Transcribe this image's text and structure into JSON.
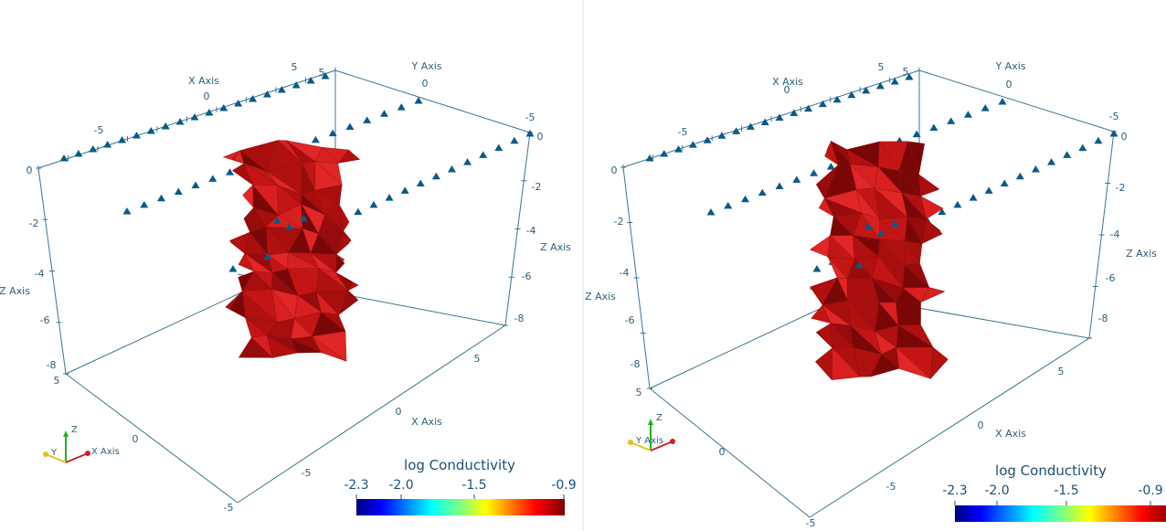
{
  "colors": {
    "axis_line": "#3d7590",
    "electrode": "#0a5a86",
    "body_face": "#c41515",
    "body_dark": "#7a0707",
    "label": "#2f5f7a",
    "colorbar_label": "#1b4f77"
  },
  "panels": [
    {
      "id": "left",
      "axis_titles": {
        "x": "X Axis",
        "y": "Y Axis",
        "z": "Z Axis",
        "x_bottom": "X Axis"
      },
      "x_top_ticks": [
        "-5",
        "0",
        "5"
      ],
      "y_top_ticks": [
        "0",
        "5",
        "-5"
      ],
      "z_left_ticks": [
        "0",
        "-2",
        "-4",
        "-6",
        "-8"
      ],
      "z_right_ticks": [
        "0",
        "-2",
        "-4",
        "-6",
        "-8"
      ],
      "y_bottom_ticks": [
        "5",
        "0",
        "-5"
      ],
      "x_bottom_ticks": [
        "5",
        "0",
        "-5"
      ],
      "colorbar": {
        "title": "log Conductivity",
        "ticks": [
          "-2.3",
          "-2.0",
          "-1.5",
          "-0.9"
        ]
      },
      "orientation": {
        "x": "X Axis",
        "y": "Y",
        "z": "Z"
      }
    },
    {
      "id": "right",
      "axis_titles": {
        "x": "X Axis",
        "y": "Y Axis",
        "z": "Z Axis",
        "x_bottom": "X Axis"
      },
      "x_top_ticks": [
        "-5",
        "0",
        "5"
      ],
      "y_top_ticks": [
        "0",
        "5",
        "-5"
      ],
      "z_left_ticks": [
        "0",
        "-2",
        "-4",
        "-6",
        "-8"
      ],
      "z_right_ticks": [
        "0",
        "-2",
        "-4",
        "-6",
        "-8"
      ],
      "y_bottom_ticks": [
        "5",
        "0",
        "-5"
      ],
      "x_bottom_ticks": [
        "5",
        "0",
        "-5"
      ],
      "colorbar": {
        "title": "log Conductivity",
        "ticks": [
          "-2.3",
          "-2.0",
          "-1.5",
          "-0.9"
        ]
      },
      "orientation": {
        "x": "",
        "y": "Y Axis",
        "z": "Z"
      }
    }
  ]
}
